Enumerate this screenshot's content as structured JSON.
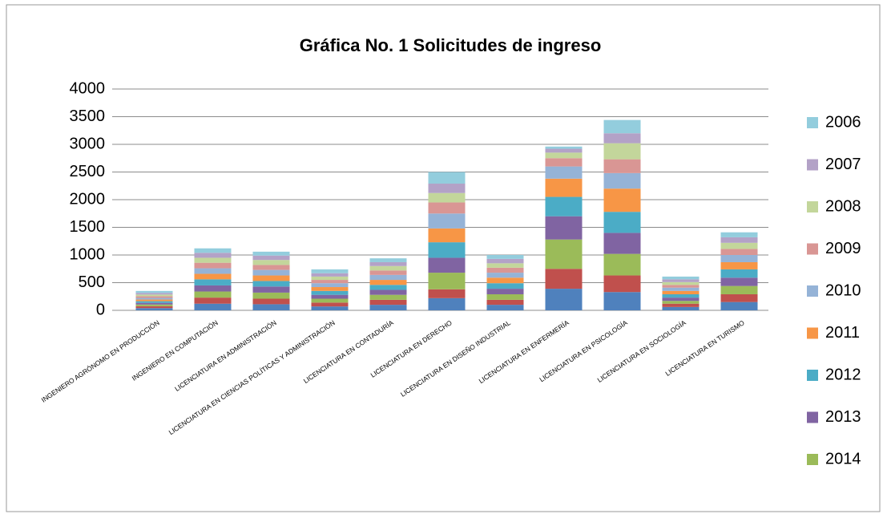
{
  "chart_data": {
    "type": "stacked_bar",
    "title": "Gráfica No. 1 Solicitudes de ingreso",
    "categories": [
      "INGENIERO AGRÓNOMO EN PRODUCCIÓN",
      "INGENIERO EN COMPUTACIÓN",
      "LICENCIATURA EN ADMINISTRACIÓN",
      "LICENCIATURA EN CIENCIAS POLÍTICAS Y ADMINISTRACIÓN",
      "LICENCIATURA EN CONTADURÍA",
      "LICENCIATURA EN DERECHO",
      "LICENCIATURA EN DISEÑO INDUSTRIAL",
      "LICENCIATURA EN ENFERMERÍA",
      "LICENCIATURA EN PSICOLOGÍA",
      "LICENCIATURA EN SOCIOLOGÍA",
      "LICENCIATURA EN TURISMO"
    ],
    "series": [
      {
        "name": null,
        "color": "#4f81bd",
        "values": [
          40,
          120,
          110,
          70,
          100,
          220,
          100,
          390,
          330,
          60,
          150
        ]
      },
      {
        "name": null,
        "color": "#c0504d",
        "values": [
          35,
          110,
          100,
          70,
          90,
          160,
          90,
          360,
          300,
          60,
          140
        ]
      },
      {
        "name": "2014",
        "color": "#9bbb59",
        "values": [
          30,
          110,
          110,
          70,
          90,
          300,
          100,
          530,
          390,
          50,
          150
        ]
      },
      {
        "name": "2013",
        "color": "#8064a2",
        "values": [
          30,
          110,
          110,
          70,
          90,
          270,
          100,
          420,
          380,
          60,
          150
        ]
      },
      {
        "name": "2012",
        "color": "#4bacc6",
        "values": [
          30,
          110,
          100,
          70,
          90,
          280,
          100,
          350,
          380,
          60,
          150
        ]
      },
      {
        "name": "2011",
        "color": "#f79646",
        "values": [
          30,
          100,
          100,
          70,
          90,
          250,
          100,
          330,
          420,
          60,
          130
        ]
      },
      {
        "name": "2010",
        "color": "#95b3d7",
        "values": [
          30,
          100,
          100,
          70,
          90,
          270,
          90,
          220,
          280,
          60,
          130
        ]
      },
      {
        "name": "2009",
        "color": "#d99694",
        "values": [
          30,
          100,
          90,
          60,
          80,
          200,
          90,
          150,
          250,
          50,
          110
        ]
      },
      {
        "name": "2008",
        "color": "#c3d69b",
        "values": [
          30,
          90,
          90,
          60,
          80,
          170,
          80,
          100,
          290,
          50,
          110
        ]
      },
      {
        "name": "2007",
        "color": "#b3a2c7",
        "values": [
          30,
          90,
          80,
          60,
          70,
          170,
          80,
          70,
          180,
          50,
          100
        ]
      },
      {
        "name": "2006",
        "color": "#93cddd",
        "values": [
          35,
          80,
          70,
          70,
          70,
          210,
          70,
          40,
          240,
          50,
          90
        ]
      }
    ],
    "ylim": [
      0,
      4000
    ],
    "yticks": [
      0,
      500,
      1000,
      1500,
      2000,
      2500,
      3000,
      3500,
      4000
    ],
    "grid": true,
    "legend": "right"
  }
}
